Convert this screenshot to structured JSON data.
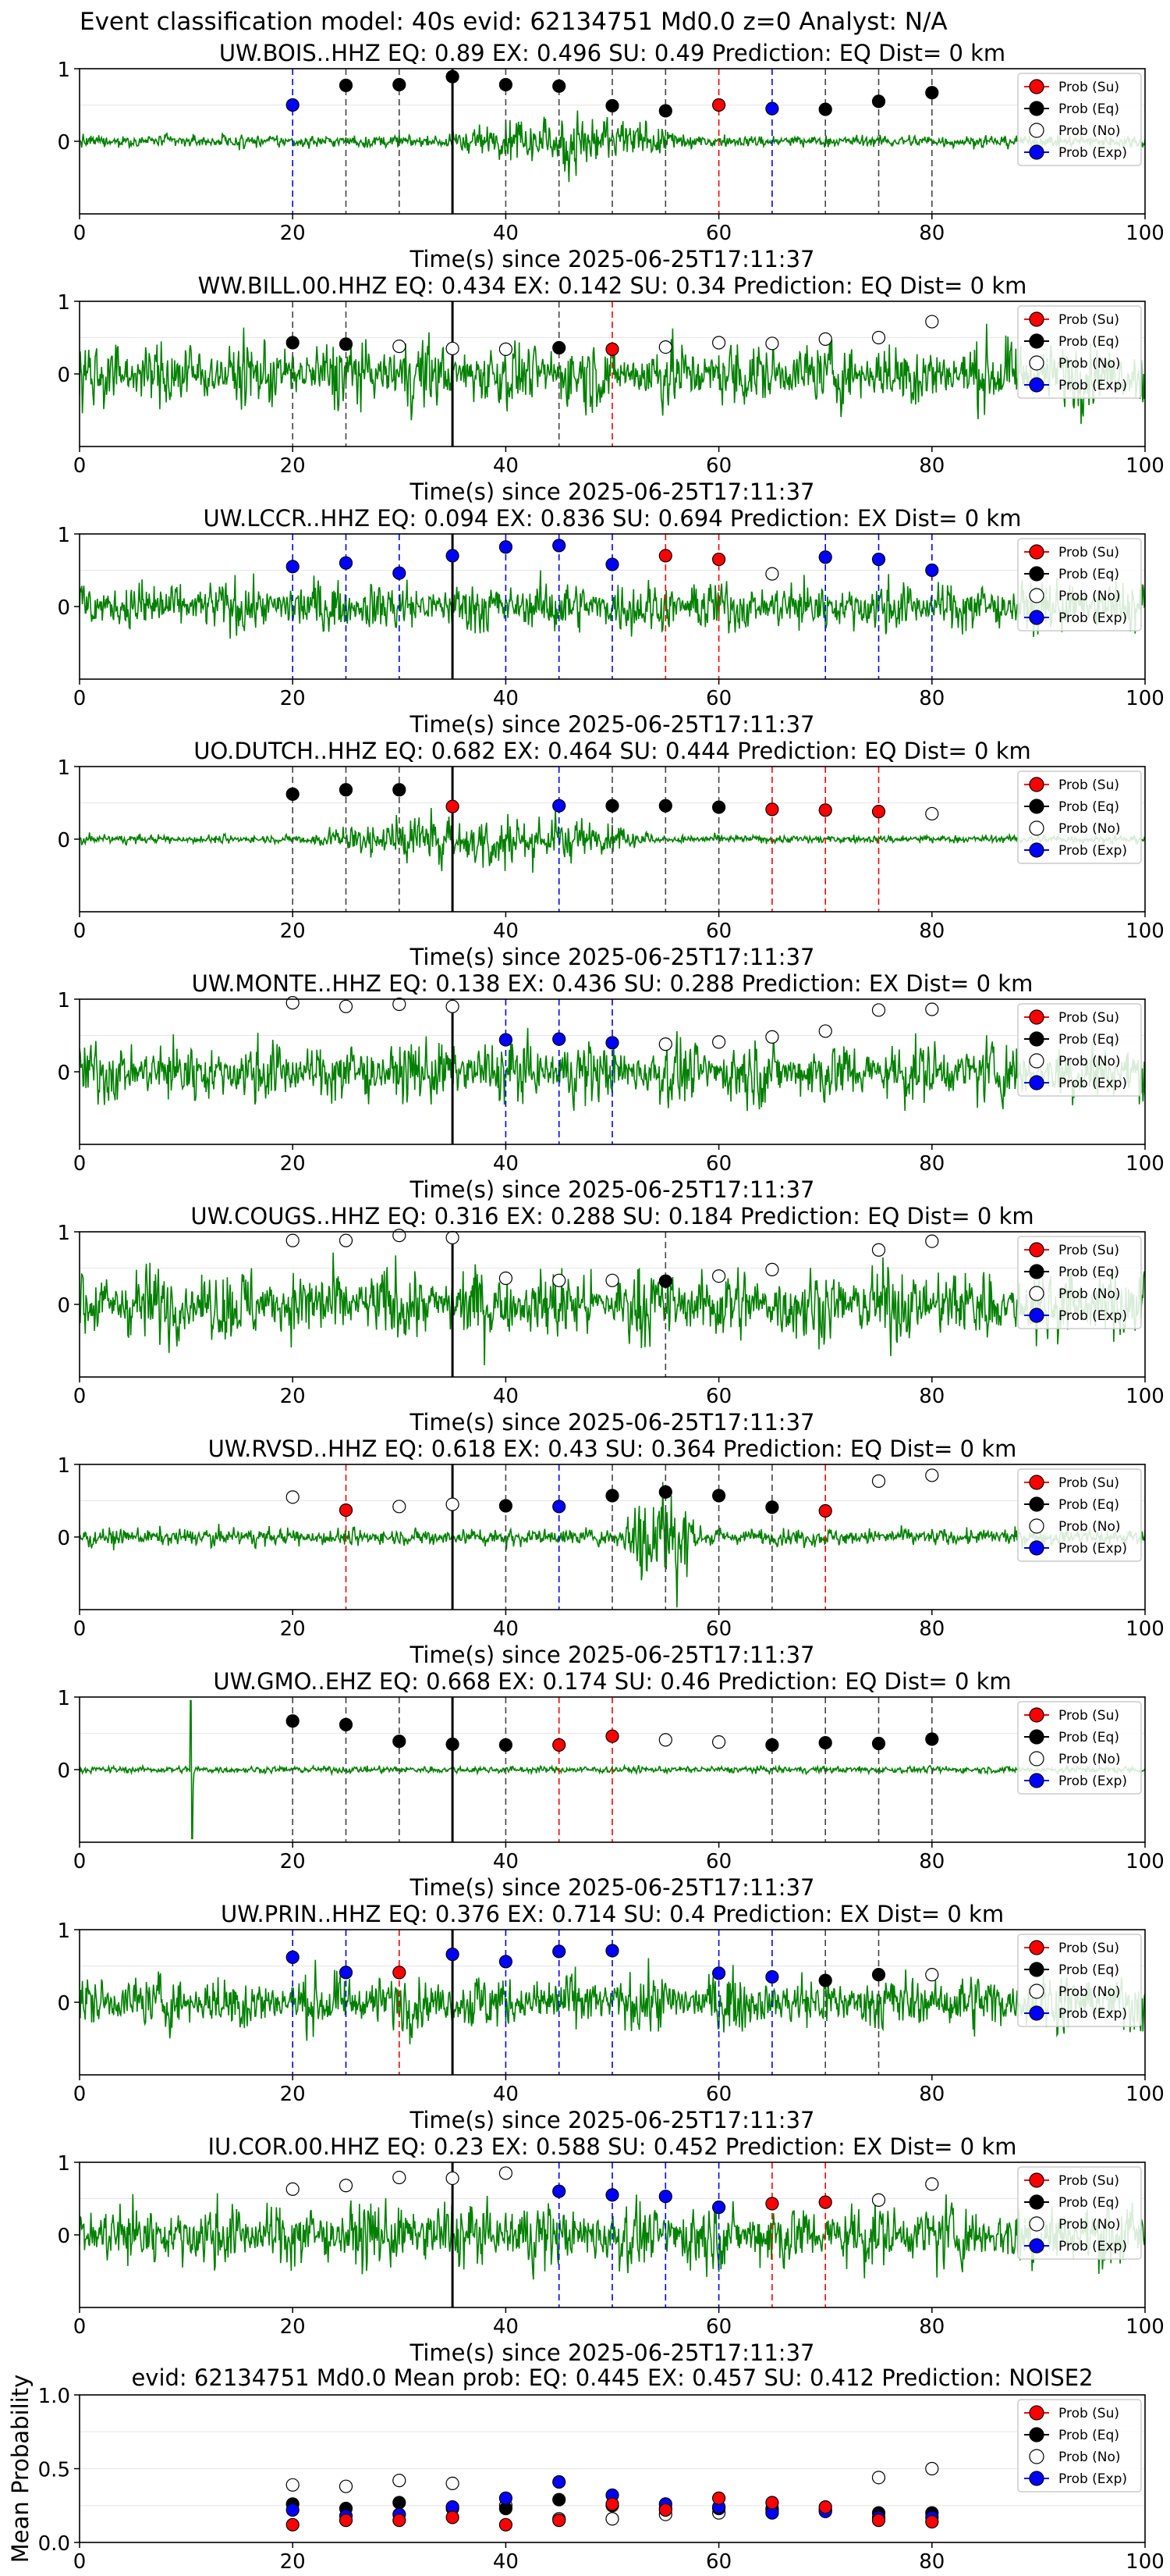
{
  "figure_title": "Event classification model: 40s evid: 62134751 Md0.0 z=0 Analyst: N/A",
  "colors": {
    "waveform": "#008000",
    "su": "#ff0000",
    "eq": "#000000",
    "no": "#ffffff",
    "exp": "#0000ff",
    "origin_line": "#000000",
    "grid": "#e6e6e6"
  },
  "legend": {
    "placement": "upper-right",
    "items": [
      {
        "key": "su",
        "label": "Prob (Su)"
      },
      {
        "key": "eq",
        "label": "Prob (Eq)"
      },
      {
        "key": "no",
        "label": "Prob (No)"
      },
      {
        "key": "exp",
        "label": "Prob (Exp)"
      }
    ]
  },
  "chart_data": [
    {
      "type": "line",
      "title": "UW.BOIS..HHZ   EQ: 0.89  EX: 0.496  SU: 0.49   Prediction: EQ    Dist= 0 km",
      "xlabel": "Time(s) since 2025-06-25T17:11:37",
      "xlim": [
        0,
        100
      ],
      "ylim": [
        -1,
        1
      ],
      "xticks": [
        "0",
        "20",
        "40",
        "60",
        "80",
        "100"
      ],
      "yticks": [
        "0",
        "1"
      ],
      "origin_time": 35,
      "waveform": {
        "amp": 0.09,
        "style": "spiky",
        "burst": [
          35,
          58,
          0.35
        ]
      },
      "points": [
        {
          "x": 20,
          "y": 0.5,
          "cls": "exp"
        },
        {
          "x": 25,
          "y": 0.77,
          "cls": "eq"
        },
        {
          "x": 30,
          "y": 0.78,
          "cls": "eq"
        },
        {
          "x": 35,
          "y": 0.89,
          "cls": "eq"
        },
        {
          "x": 40,
          "y": 0.78,
          "cls": "eq"
        },
        {
          "x": 45,
          "y": 0.76,
          "cls": "eq"
        },
        {
          "x": 50,
          "y": 0.49,
          "cls": "eq"
        },
        {
          "x": 55,
          "y": 0.42,
          "cls": "eq"
        },
        {
          "x": 60,
          "y": 0.5,
          "cls": "su"
        },
        {
          "x": 65,
          "y": 0.45,
          "cls": "exp"
        },
        {
          "x": 70,
          "y": 0.44,
          "cls": "eq"
        },
        {
          "x": 75,
          "y": 0.55,
          "cls": "eq"
        },
        {
          "x": 80,
          "y": 0.67,
          "cls": "eq"
        }
      ]
    },
    {
      "type": "line",
      "title": "WW.BILL.00.HHZ   EQ: 0.434  EX: 0.142  SU: 0.34   Prediction: EQ    Dist= 0 km",
      "xlabel": "Time(s) since 2025-06-25T17:11:37",
      "xlim": [
        0,
        100
      ],
      "ylim": [
        -1,
        1
      ],
      "xticks": [
        "0",
        "20",
        "40",
        "60",
        "80",
        "100"
      ],
      "yticks": [
        "0",
        "1"
      ],
      "origin_time": 35,
      "waveform": {
        "amp": 0.45,
        "style": "noise"
      },
      "points": [
        {
          "x": 20,
          "y": 0.43,
          "cls": "eq"
        },
        {
          "x": 25,
          "y": 0.41,
          "cls": "eq"
        },
        {
          "x": 30,
          "y": 0.38,
          "cls": "no"
        },
        {
          "x": 35,
          "y": 0.35,
          "cls": "no"
        },
        {
          "x": 40,
          "y": 0.34,
          "cls": "no"
        },
        {
          "x": 45,
          "y": 0.36,
          "cls": "eq"
        },
        {
          "x": 50,
          "y": 0.34,
          "cls": "su"
        },
        {
          "x": 55,
          "y": 0.37,
          "cls": "no"
        },
        {
          "x": 60,
          "y": 0.43,
          "cls": "no"
        },
        {
          "x": 65,
          "y": 0.42,
          "cls": "no"
        },
        {
          "x": 70,
          "y": 0.48,
          "cls": "no"
        },
        {
          "x": 75,
          "y": 0.5,
          "cls": "no"
        },
        {
          "x": 80,
          "y": 0.72,
          "cls": "no"
        }
      ]
    },
    {
      "type": "line",
      "title": "UW.LCCR..HHZ   EQ: 0.094  EX: 0.836  SU: 0.694   Prediction: EX    Dist= 0 km",
      "xlabel": "Time(s) since 2025-06-25T17:11:37",
      "xlim": [
        0,
        100
      ],
      "ylim": [
        -1,
        1
      ],
      "xticks": [
        "0",
        "20",
        "40",
        "60",
        "80",
        "100"
      ],
      "yticks": [
        "0",
        "1"
      ],
      "origin_time": 35,
      "waveform": {
        "amp": 0.35,
        "style": "noise"
      },
      "points": [
        {
          "x": 20,
          "y": 0.55,
          "cls": "exp"
        },
        {
          "x": 25,
          "y": 0.6,
          "cls": "exp"
        },
        {
          "x": 30,
          "y": 0.46,
          "cls": "exp"
        },
        {
          "x": 35,
          "y": 0.7,
          "cls": "exp"
        },
        {
          "x": 40,
          "y": 0.82,
          "cls": "exp"
        },
        {
          "x": 45,
          "y": 0.84,
          "cls": "exp"
        },
        {
          "x": 50,
          "y": 0.58,
          "cls": "exp"
        },
        {
          "x": 55,
          "y": 0.7,
          "cls": "su"
        },
        {
          "x": 60,
          "y": 0.65,
          "cls": "su"
        },
        {
          "x": 65,
          "y": 0.45,
          "cls": "no"
        },
        {
          "x": 70,
          "y": 0.68,
          "cls": "exp"
        },
        {
          "x": 75,
          "y": 0.65,
          "cls": "exp"
        },
        {
          "x": 80,
          "y": 0.5,
          "cls": "exp"
        }
      ]
    },
    {
      "type": "line",
      "title": "UO.DUTCH..HHZ   EQ: 0.682  EX: 0.464  SU: 0.444   Prediction: EQ    Dist= 0 km",
      "xlabel": "Time(s) since 2025-06-25T17:11:37",
      "xlim": [
        0,
        100
      ],
      "ylim": [
        -1,
        1
      ],
      "xticks": [
        "0",
        "20",
        "40",
        "60",
        "80",
        "100"
      ],
      "yticks": [
        "0",
        "1"
      ],
      "origin_time": 35,
      "waveform": {
        "amp": 0.06,
        "style": "spiky",
        "burst": [
          22,
          55,
          0.4
        ]
      },
      "points": [
        {
          "x": 20,
          "y": 0.62,
          "cls": "eq"
        },
        {
          "x": 25,
          "y": 0.68,
          "cls": "eq"
        },
        {
          "x": 30,
          "y": 0.68,
          "cls": "eq"
        },
        {
          "x": 35,
          "y": 0.45,
          "cls": "su"
        },
        {
          "x": 45,
          "y": 0.46,
          "cls": "exp"
        },
        {
          "x": 50,
          "y": 0.46,
          "cls": "eq"
        },
        {
          "x": 55,
          "y": 0.46,
          "cls": "eq"
        },
        {
          "x": 60,
          "y": 0.44,
          "cls": "eq"
        },
        {
          "x": 65,
          "y": 0.41,
          "cls": "su"
        },
        {
          "x": 70,
          "y": 0.4,
          "cls": "su"
        },
        {
          "x": 75,
          "y": 0.38,
          "cls": "su"
        },
        {
          "x": 80,
          "y": 0.35,
          "cls": "no"
        }
      ]
    },
    {
      "type": "line",
      "title": "UW.MONTE..HHZ   EQ: 0.138  EX: 0.436  SU: 0.288   Prediction: EX    Dist= 0 km",
      "xlabel": "Time(s) since 2025-06-25T17:11:37",
      "xlim": [
        0,
        100
      ],
      "ylim": [
        -1,
        1
      ],
      "xticks": [
        "0",
        "20",
        "40",
        "60",
        "80",
        "100"
      ],
      "yticks": [
        "0",
        "1"
      ],
      "origin_time": 35,
      "waveform": {
        "amp": 0.42,
        "style": "noise"
      },
      "points": [
        {
          "x": 20,
          "y": 0.95,
          "cls": "no"
        },
        {
          "x": 25,
          "y": 0.9,
          "cls": "no"
        },
        {
          "x": 30,
          "y": 0.93,
          "cls": "no"
        },
        {
          "x": 35,
          "y": 0.9,
          "cls": "no"
        },
        {
          "x": 40,
          "y": 0.44,
          "cls": "exp"
        },
        {
          "x": 45,
          "y": 0.45,
          "cls": "exp"
        },
        {
          "x": 50,
          "y": 0.4,
          "cls": "exp"
        },
        {
          "x": 55,
          "y": 0.38,
          "cls": "no"
        },
        {
          "x": 60,
          "y": 0.41,
          "cls": "no"
        },
        {
          "x": 65,
          "y": 0.48,
          "cls": "no"
        },
        {
          "x": 70,
          "y": 0.56,
          "cls": "no"
        },
        {
          "x": 75,
          "y": 0.85,
          "cls": "no"
        },
        {
          "x": 80,
          "y": 0.86,
          "cls": "no"
        }
      ]
    },
    {
      "type": "line",
      "title": "UW.COUGS..HHZ   EQ: 0.316  EX: 0.288  SU: 0.184   Prediction: EQ    Dist= 0 km",
      "xlabel": "Time(s) since 2025-06-25T17:11:37",
      "xlim": [
        0,
        100
      ],
      "ylim": [
        -1,
        1
      ],
      "xticks": [
        "0",
        "20",
        "40",
        "60",
        "80",
        "100"
      ],
      "yticks": [
        "0",
        "1"
      ],
      "origin_time": 35,
      "waveform": {
        "amp": 0.5,
        "style": "noise"
      },
      "points": [
        {
          "x": 20,
          "y": 0.88,
          "cls": "no"
        },
        {
          "x": 25,
          "y": 0.88,
          "cls": "no"
        },
        {
          "x": 30,
          "y": 0.95,
          "cls": "no"
        },
        {
          "x": 35,
          "y": 0.92,
          "cls": "no"
        },
        {
          "x": 40,
          "y": 0.36,
          "cls": "no"
        },
        {
          "x": 45,
          "y": 0.33,
          "cls": "no"
        },
        {
          "x": 50,
          "y": 0.33,
          "cls": "no"
        },
        {
          "x": 55,
          "y": 0.32,
          "cls": "eq"
        },
        {
          "x": 60,
          "y": 0.39,
          "cls": "no"
        },
        {
          "x": 65,
          "y": 0.48,
          "cls": "no"
        },
        {
          "x": 75,
          "y": 0.75,
          "cls": "no"
        },
        {
          "x": 80,
          "y": 0.87,
          "cls": "no"
        }
      ]
    },
    {
      "type": "line",
      "title": "UW.RVSD..HHZ   EQ: 0.618  EX: 0.43  SU: 0.364   Prediction: EQ    Dist= 0 km",
      "xlabel": "Time(s) since 2025-06-25T17:11:37",
      "xlim": [
        0,
        100
      ],
      "ylim": [
        -1,
        1
      ],
      "xticks": [
        "0",
        "20",
        "40",
        "60",
        "80",
        "100"
      ],
      "yticks": [
        "0",
        "1"
      ],
      "origin_time": 35,
      "waveform": {
        "amp": 0.12,
        "style": "spiky",
        "burst": [
          52,
          58,
          0.9
        ]
      },
      "points": [
        {
          "x": 20,
          "y": 0.55,
          "cls": "no"
        },
        {
          "x": 25,
          "y": 0.37,
          "cls": "su"
        },
        {
          "x": 30,
          "y": 0.42,
          "cls": "no"
        },
        {
          "x": 35,
          "y": 0.45,
          "cls": "no"
        },
        {
          "x": 40,
          "y": 0.43,
          "cls": "eq"
        },
        {
          "x": 45,
          "y": 0.42,
          "cls": "exp"
        },
        {
          "x": 50,
          "y": 0.57,
          "cls": "eq"
        },
        {
          "x": 55,
          "y": 0.62,
          "cls": "eq"
        },
        {
          "x": 60,
          "y": 0.57,
          "cls": "eq"
        },
        {
          "x": 65,
          "y": 0.41,
          "cls": "eq"
        },
        {
          "x": 70,
          "y": 0.36,
          "cls": "su"
        },
        {
          "x": 75,
          "y": 0.77,
          "cls": "no"
        },
        {
          "x": 80,
          "y": 0.85,
          "cls": "no"
        }
      ]
    },
    {
      "type": "line",
      "title": "UW.GMO..EHZ   EQ: 0.668  EX: 0.174  SU: 0.46   Prediction: EQ    Dist= 0 km",
      "xlabel": "Time(s) since 2025-06-25T17:11:37",
      "xlim": [
        0,
        100
      ],
      "ylim": [
        -1,
        1
      ],
      "xticks": [
        "0",
        "20",
        "40",
        "60",
        "80",
        "100"
      ],
      "yticks": [
        "0",
        "1"
      ],
      "origin_time": 35,
      "waveform": {
        "amp": 0.05,
        "style": "flat",
        "spike": [
          10.5,
          0.95
        ]
      },
      "points": [
        {
          "x": 20,
          "y": 0.67,
          "cls": "eq"
        },
        {
          "x": 25,
          "y": 0.62,
          "cls": "eq"
        },
        {
          "x": 30,
          "y": 0.39,
          "cls": "eq"
        },
        {
          "x": 35,
          "y": 0.35,
          "cls": "eq"
        },
        {
          "x": 40,
          "y": 0.34,
          "cls": "eq"
        },
        {
          "x": 45,
          "y": 0.34,
          "cls": "su"
        },
        {
          "x": 50,
          "y": 0.46,
          "cls": "su"
        },
        {
          "x": 55,
          "y": 0.41,
          "cls": "no"
        },
        {
          "x": 60,
          "y": 0.38,
          "cls": "no"
        },
        {
          "x": 65,
          "y": 0.34,
          "cls": "eq"
        },
        {
          "x": 70,
          "y": 0.37,
          "cls": "eq"
        },
        {
          "x": 75,
          "y": 0.36,
          "cls": "eq"
        },
        {
          "x": 80,
          "y": 0.42,
          "cls": "eq"
        }
      ]
    },
    {
      "type": "line",
      "title": "UW.PRIN..HHZ   EQ: 0.376  EX: 0.714  SU: 0.4   Prediction: EX    Dist= 0 km",
      "xlabel": "Time(s) since 2025-06-25T17:11:37",
      "xlim": [
        0,
        100
      ],
      "ylim": [
        -1,
        1
      ],
      "xticks": [
        "0",
        "20",
        "40",
        "60",
        "80",
        "100"
      ],
      "yticks": [
        "0",
        "1"
      ],
      "origin_time": 35,
      "waveform": {
        "amp": 0.38,
        "style": "noise"
      },
      "points": [
        {
          "x": 20,
          "y": 0.62,
          "cls": "exp"
        },
        {
          "x": 25,
          "y": 0.41,
          "cls": "exp"
        },
        {
          "x": 30,
          "y": 0.41,
          "cls": "su"
        },
        {
          "x": 35,
          "y": 0.66,
          "cls": "exp"
        },
        {
          "x": 40,
          "y": 0.56,
          "cls": "exp"
        },
        {
          "x": 45,
          "y": 0.7,
          "cls": "exp"
        },
        {
          "x": 50,
          "y": 0.71,
          "cls": "exp"
        },
        {
          "x": 60,
          "y": 0.4,
          "cls": "exp"
        },
        {
          "x": 65,
          "y": 0.35,
          "cls": "exp"
        },
        {
          "x": 70,
          "y": 0.3,
          "cls": "eq"
        },
        {
          "x": 75,
          "y": 0.38,
          "cls": "eq"
        },
        {
          "x": 80,
          "y": 0.38,
          "cls": "no"
        }
      ]
    },
    {
      "type": "line",
      "title": "IU.COR.00.HHZ   EQ: 0.23  EX: 0.588  SU: 0.452   Prediction: EX    Dist= 0 km",
      "xlabel": "Time(s) since 2025-06-25T17:11:37",
      "xlim": [
        0,
        100
      ],
      "ylim": [
        -1,
        1
      ],
      "xticks": [
        "0",
        "20",
        "40",
        "60",
        "80",
        "100"
      ],
      "yticks": [
        "0",
        "1"
      ],
      "origin_time": 35,
      "waveform": {
        "amp": 0.45,
        "style": "noise"
      },
      "points": [
        {
          "x": 20,
          "y": 0.63,
          "cls": "no"
        },
        {
          "x": 25,
          "y": 0.68,
          "cls": "no"
        },
        {
          "x": 30,
          "y": 0.79,
          "cls": "no"
        },
        {
          "x": 35,
          "y": 0.78,
          "cls": "no"
        },
        {
          "x": 40,
          "y": 0.85,
          "cls": "no"
        },
        {
          "x": 45,
          "y": 0.6,
          "cls": "exp"
        },
        {
          "x": 50,
          "y": 0.55,
          "cls": "exp"
        },
        {
          "x": 55,
          "y": 0.53,
          "cls": "exp"
        },
        {
          "x": 60,
          "y": 0.38,
          "cls": "exp"
        },
        {
          "x": 65,
          "y": 0.43,
          "cls": "su"
        },
        {
          "x": 70,
          "y": 0.45,
          "cls": "su"
        },
        {
          "x": 75,
          "y": 0.48,
          "cls": "no"
        },
        {
          "x": 80,
          "y": 0.7,
          "cls": "no"
        }
      ]
    },
    {
      "type": "scatter",
      "title": "evid: 62134751  Md0.0   Mean prob:   EQ: 0.445  EX: 0.457  SU: 0.412   Prediction: NOISE2",
      "xlabel": "",
      "ylabel": "Mean Probability",
      "xlim": [
        0,
        100
      ],
      "ylim": [
        0,
        1
      ],
      "xticks": [
        "0",
        "20",
        "40",
        "60",
        "80",
        "100"
      ],
      "yticks": [
        "0.0",
        "0.5",
        "1.0"
      ],
      "series": [
        {
          "key": "no",
          "x": [
            20,
            25,
            30,
            35,
            40,
            45,
            50,
            55,
            60,
            65,
            70,
            75,
            80
          ],
          "values": [
            0.39,
            0.38,
            0.42,
            0.4,
            0.25,
            0.16,
            0.16,
            0.19,
            0.2,
            0.23,
            0.22,
            0.44,
            0.5
          ]
        },
        {
          "key": "eq",
          "x": [
            20,
            25,
            30,
            35,
            40,
            45,
            50,
            55,
            60,
            65,
            70,
            75,
            80
          ],
          "values": [
            0.26,
            0.23,
            0.27,
            0.23,
            0.23,
            0.29,
            0.25,
            0.23,
            0.23,
            0.22,
            0.22,
            0.2,
            0.2
          ]
        },
        {
          "key": "exp",
          "x": [
            20,
            25,
            30,
            35,
            40,
            45,
            50,
            55,
            60,
            65,
            70,
            75,
            80
          ],
          "values": [
            0.22,
            0.18,
            0.19,
            0.24,
            0.3,
            0.41,
            0.32,
            0.26,
            0.24,
            0.2,
            0.21,
            0.17,
            0.17
          ]
        },
        {
          "key": "su",
          "x": [
            20,
            25,
            30,
            35,
            40,
            45,
            50,
            55,
            60,
            65,
            70,
            75,
            80
          ],
          "values": [
            0.12,
            0.15,
            0.15,
            0.17,
            0.12,
            0.15,
            0.26,
            0.22,
            0.3,
            0.27,
            0.24,
            0.15,
            0.14
          ]
        }
      ]
    }
  ]
}
